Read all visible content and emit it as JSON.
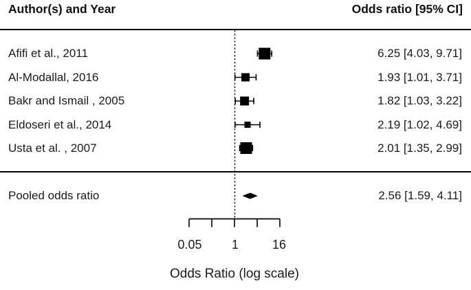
{
  "header": {
    "left": "Author(s) and Year",
    "right": "Odds ratio [95% CI]"
  },
  "chart_data": {
    "type": "forest",
    "xlabel": "Odds Ratio (log scale)",
    "x_scale": "log",
    "x_tick_labels": [
      "0.05",
      "1",
      "16"
    ],
    "x_tick_values_labeled": [
      0.05,
      1,
      16
    ],
    "n_axis_ticks": 5,
    "xlim": [
      0.05,
      16
    ],
    "reference_line": 1,
    "studies": [
      {
        "label": "Afifi et al., 2011",
        "or": 6.25,
        "ci_low": 4.03,
        "ci_high": 9.71,
        "ci_text": "6.25 [4.03, 9.71]",
        "marker_size_px": 17
      },
      {
        "label": "Al-Modallal, 2016",
        "or": 1.93,
        "ci_low": 1.01,
        "ci_high": 3.71,
        "ci_text": "1.93 [1.01, 3.71]",
        "marker_size_px": 12
      },
      {
        "label": "Bakr and Ismail , 2005",
        "or": 1.82,
        "ci_low": 1.03,
        "ci_high": 3.22,
        "ci_text": "1.82 [1.03, 3.22]",
        "marker_size_px": 13
      },
      {
        "label": "Eldoseri et al., 2014",
        "or": 2.19,
        "ci_low": 1.02,
        "ci_high": 4.69,
        "ci_text": "2.19 [1.02, 4.69]",
        "marker_size_px": 9
      },
      {
        "label": "Usta et al. , 2007",
        "or": 2.01,
        "ci_low": 1.35,
        "ci_high": 2.99,
        "ci_text": "2.01 [1.35, 2.99]",
        "marker_size_px": 17
      }
    ],
    "pooled": {
      "label": "Pooled odds ratio",
      "or": 2.56,
      "ci_low": 1.59,
      "ci_high": 4.11,
      "ci_text": "2.56 [1.59, 4.11]"
    }
  },
  "colors": {
    "background": "#ffffff",
    "text": "#1a1a1a",
    "plot": "#000000"
  }
}
